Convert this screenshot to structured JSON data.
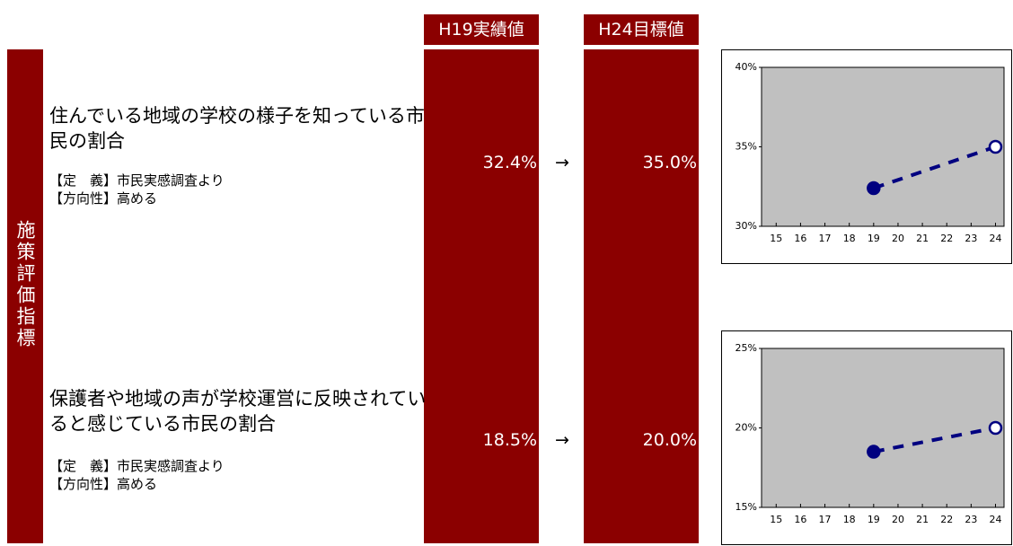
{
  "header": {
    "side_label": "施策評価指標",
    "col_current": "H19実績値",
    "col_target": "H24目標値"
  },
  "indicators": [
    {
      "title": "住んでいる地域の学校の様子を知っている市民の割合",
      "definition": "【定　義】市民実感調査より",
      "direction": "【方向性】高める",
      "current_label": "32.4%",
      "arrow": "→",
      "target_label": "35.0%",
      "chart": {
        "type": "line",
        "x": [
          19,
          24
        ],
        "values": [
          32.4,
          35.0
        ],
        "color": "#000080",
        "marker_fill": [
          "#000080",
          "#ffffff"
        ],
        "line_style": "dashed",
        "plot_color": "#c0c0c0",
        "xlim": [
          14.4,
          24.35
        ],
        "xticks": [
          15,
          16,
          17,
          18,
          19,
          20,
          21,
          22,
          23,
          24
        ],
        "ylim": [
          30,
          40
        ],
        "yticks": [
          {
            "value": 30,
            "label": "30%"
          },
          {
            "value": 35,
            "label": "35%"
          },
          {
            "value": 40,
            "label": "40%"
          }
        ]
      }
    },
    {
      "title": "保護者や地域の声が学校運営に反映されていると感じている市民の割合",
      "definition": "【定　義】市民実感調査より",
      "direction": "【方向性】高める",
      "current_label": "18.5%",
      "arrow": "→",
      "target_label": "20.0%",
      "chart": {
        "type": "line",
        "x": [
          19,
          24
        ],
        "values": [
          18.5,
          20.0
        ],
        "color": "#000080",
        "marker_fill": [
          "#000080",
          "#ffffff"
        ],
        "line_style": "dashed",
        "plot_color": "#c0c0c0",
        "xlim": [
          14.4,
          24.35
        ],
        "xticks": [
          15,
          16,
          17,
          18,
          19,
          20,
          21,
          22,
          23,
          24
        ],
        "ylim": [
          15,
          25
        ],
        "yticks": [
          {
            "value": 15,
            "label": "15%"
          },
          {
            "value": 20,
            "label": "20%"
          },
          {
            "value": 25,
            "label": "25%"
          }
        ]
      }
    }
  ]
}
